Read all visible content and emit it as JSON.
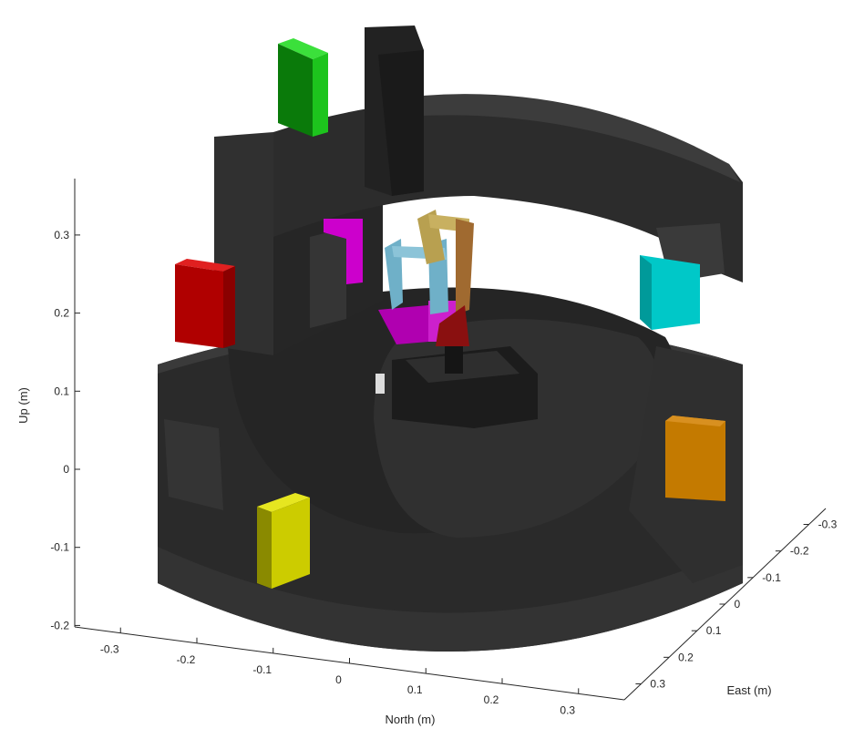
{
  "chart_data": {
    "type": "3d-surface-scene",
    "axes": {
      "north": {
        "label": "North (m)",
        "ticks": [
          -0.3,
          -0.2,
          -0.1,
          0,
          0.1,
          0.2,
          0.3
        ],
        "tick_labels": [
          "-0.3",
          "-0.2",
          "-0.1",
          "0",
          "0.1",
          "0.2",
          "0.3"
        ]
      },
      "east": {
        "label": "East (m)",
        "ticks": [
          -0.3,
          -0.2,
          -0.1,
          0,
          0.1,
          0.2,
          0.3
        ],
        "tick_labels": [
          "-0.3",
          "-0.2",
          "-0.1",
          "0",
          "0.1",
          "0.2",
          "0.3"
        ]
      },
      "up": {
        "label": "Up (m)",
        "ticks": [
          -0.2,
          -0.1,
          0,
          0.1,
          0.2,
          0.3
        ],
        "tick_labels": [
          "-0.2",
          "-0.1",
          "0",
          "0.1",
          "0.2",
          "0.3"
        ]
      }
    },
    "grid": false,
    "objects": [
      {
        "id": "green-block",
        "color": "#1dc41d"
      },
      {
        "id": "red-block",
        "color": "#c20000"
      },
      {
        "id": "cyan-block",
        "color": "#00c8c8"
      },
      {
        "id": "orange-block",
        "color": "#c47a00"
      },
      {
        "id": "yellow-block",
        "color": "#cccc00"
      },
      {
        "id": "magenta-block",
        "color": "#cc00cc"
      },
      {
        "id": "structure",
        "color": "#2b2b2b"
      },
      {
        "id": "robot-arm-cyan",
        "color": "#6fb0c8"
      },
      {
        "id": "robot-arm-gold",
        "color": "#b8a050"
      },
      {
        "id": "robot-arm-bronze",
        "color": "#a06a30"
      },
      {
        "id": "robot-base-red",
        "color": "#8a1010"
      }
    ]
  }
}
